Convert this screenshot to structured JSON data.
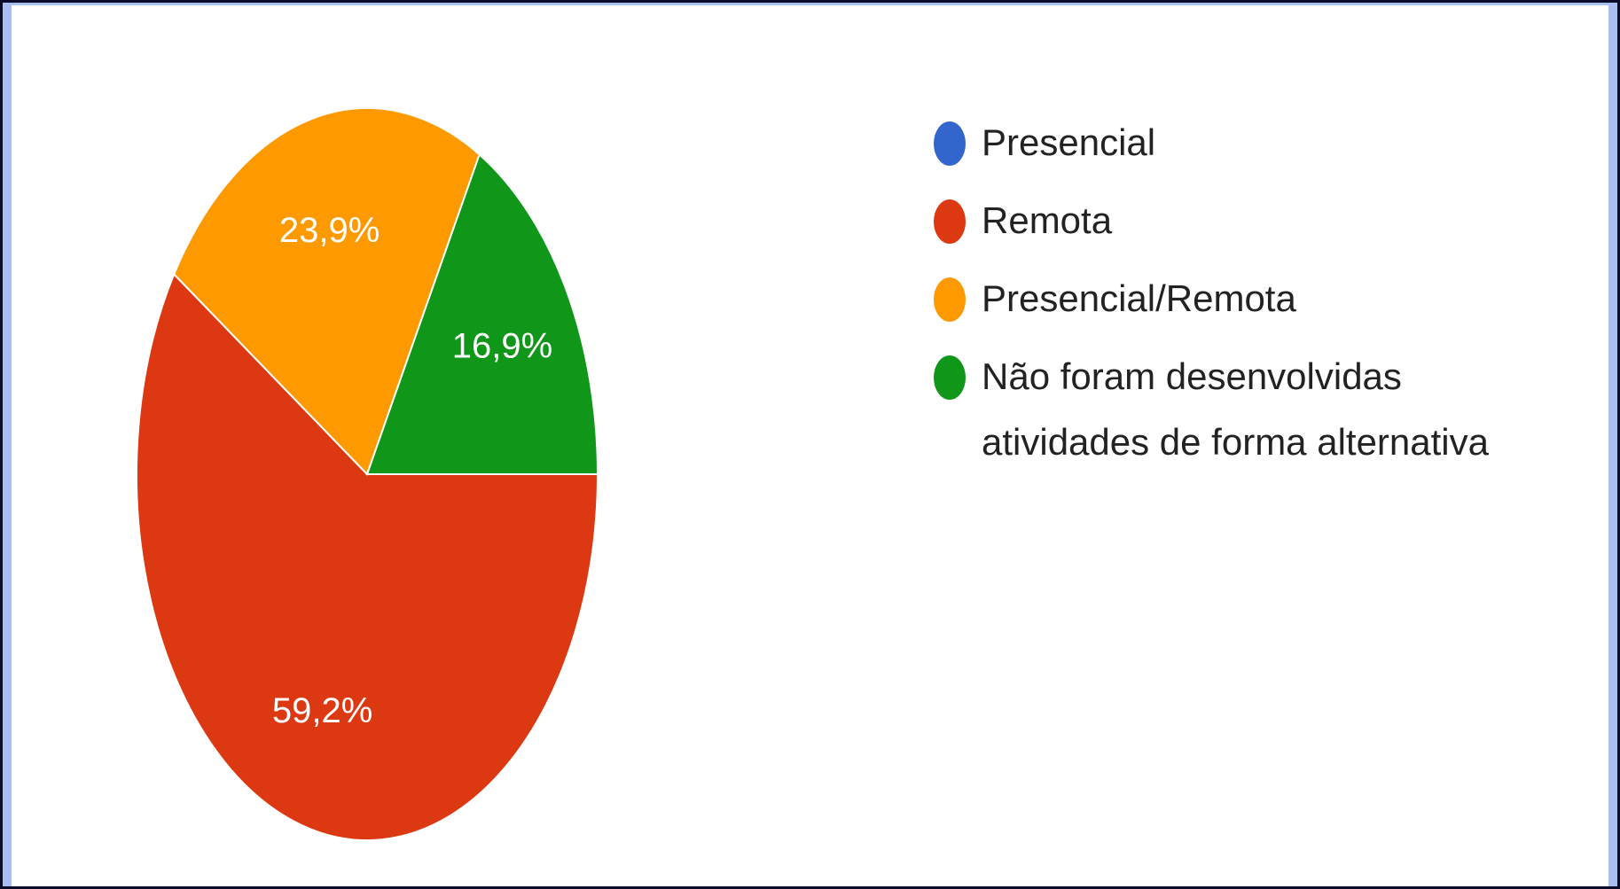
{
  "chart_data": {
    "type": "pie",
    "categories": [
      "Presencial",
      "Remota",
      "Presencial/Remota",
      "Não foram desenvolvidas atividades de forma alternativa"
    ],
    "values": [
      0,
      59.2,
      23.9,
      16.9
    ],
    "value_labels": [
      null,
      "59,2%",
      "23,9%",
      "16,9%"
    ],
    "colors": [
      "#3366cc",
      "#dc3912",
      "#ff9900",
      "#109618"
    ]
  }
}
